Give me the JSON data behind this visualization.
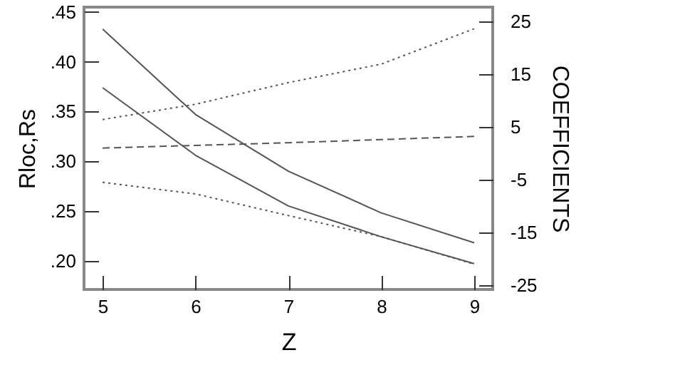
{
  "chart_data": {
    "type": "line",
    "xlabel": "Z",
    "ylabel": "Rloc,Rs",
    "y2label": "COEFFICIENTS",
    "x": [
      5,
      6,
      7,
      8,
      9
    ],
    "series": [
      {
        "color": "#555555",
        "line_style": "solid",
        "values": [
          0.433,
          0.347,
          0.29,
          0.248,
          0.218
        ]
      },
      {
        "color": "#555555",
        "line_style": "solid",
        "values": [
          0.374,
          0.306,
          0.255,
          0.224,
          0.197
        ]
      },
      {
        "color": "#555555",
        "line_style": "dotted",
        "axis": "y2",
        "values": [
          6.4,
          9.3,
          13.4,
          16.9,
          23.6
        ]
      },
      {
        "color": "#555555",
        "line_style": "dashed",
        "axis": "y2",
        "values": [
          1.0,
          1.5,
          2.0,
          2.6,
          3.2
        ]
      },
      {
        "color": "#555555",
        "line_style": "dotted",
        "axis": "y2",
        "values": [
          -5.5,
          -7.7,
          -11.8,
          -15.8,
          -21
        ]
      }
    ],
    "xlim": [
      4.8,
      9.2
    ],
    "xticks": [
      5,
      6,
      7,
      8,
      9
    ],
    "ylim": [
      0.171,
      0.455
    ],
    "yticks": [
      {
        "value": 0.2,
        "label": ".20"
      },
      {
        "value": 0.25,
        "label": ".25"
      },
      {
        "value": 0.3,
        "label": ".30"
      },
      {
        "value": 0.35,
        "label": ".35"
      },
      {
        "value": 0.4,
        "label": ".40"
      },
      {
        "value": 0.45,
        "label": ".45"
      }
    ],
    "y2lim": [
      -25.8,
      27.7
    ],
    "y2ticks": [
      -25,
      -15,
      -5,
      5,
      15,
      25
    ],
    "grid": false,
    "legend": false,
    "marker": "none"
  }
}
